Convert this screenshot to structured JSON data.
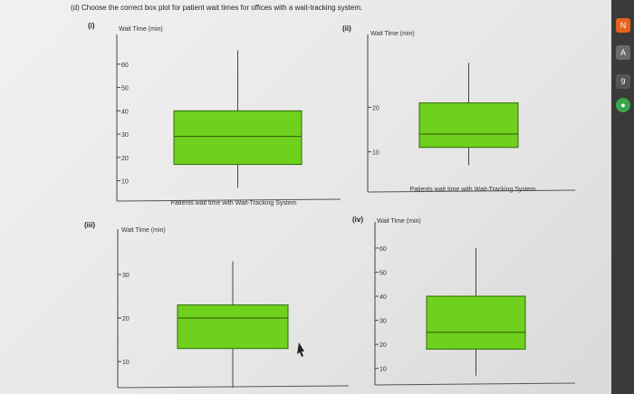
{
  "question": "(d) Choose the correct box plot for patient wait times for offices with a wait-tracking system.",
  "chart_data": [
    {
      "type": "box",
      "panel_label": "(i)",
      "ylabel": "Wait Time (min)",
      "xlabel": "Patients wait time with Wait-Tracking System",
      "yticks": [
        10,
        20,
        30,
        40,
        50,
        60
      ],
      "ylim": [
        4,
        72
      ],
      "box": {
        "min": 7,
        "q1": 17,
        "median": 29,
        "q3": 40,
        "max": 66
      }
    },
    {
      "type": "box",
      "panel_label": "(ii)",
      "ylabel": "Wait Time (min)",
      "xlabel": "Patients wait time with Wait-Tracking System",
      "yticks": [
        10,
        20
      ],
      "ylim": [
        3,
        36
      ],
      "box": {
        "min": 7,
        "q1": 11,
        "median": 14,
        "q3": 21,
        "max": 30
      }
    },
    {
      "type": "box",
      "panel_label": "(iii)",
      "ylabel": "Wait Time (min)",
      "xlabel": "",
      "yticks": [
        10,
        20,
        30
      ],
      "ylim": [
        4,
        40
      ],
      "box": {
        "min": 4,
        "q1": 13,
        "median": 20,
        "q3": 23,
        "max": 33
      }
    },
    {
      "type": "box",
      "panel_label": "(iv)",
      "ylabel": "Wait Time (min)",
      "xlabel": "",
      "yticks": [
        10,
        20,
        30,
        40,
        50,
        60
      ],
      "ylim": [
        5,
        69
      ],
      "box": {
        "min": 7,
        "q1": 18,
        "median": 25,
        "q3": 40,
        "max": 60
      }
    }
  ]
}
